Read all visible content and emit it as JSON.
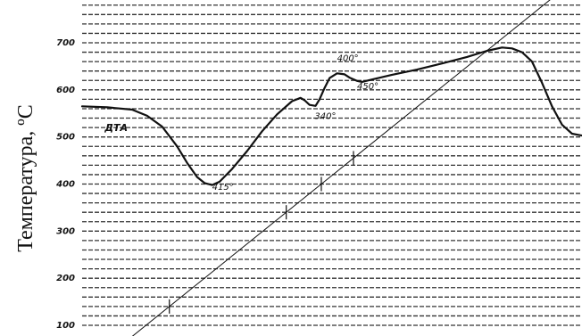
{
  "chart_data": {
    "type": "line",
    "ylabel": "Температура, ºС",
    "ytick_labels": [
      "700",
      "600",
      "500",
      "400",
      "300",
      "200",
      "100"
    ],
    "ytick_values": [
      700,
      600,
      500,
      400,
      300,
      200,
      100
    ],
    "ylim": [
      65,
      780
    ],
    "grid": true,
    "series": [
      {
        "name": "ДТА",
        "comment": "differential thermal analysis curve (temperature-scale readings)",
        "points": [
          [
            0,
            565
          ],
          [
            5,
            563
          ],
          [
            10,
            558
          ],
          [
            13,
            545
          ],
          [
            16,
            522
          ],
          [
            19,
            480
          ],
          [
            21,
            445
          ],
          [
            23,
            415
          ],
          [
            24.5,
            402
          ],
          [
            26,
            398
          ],
          [
            27.5,
            405
          ],
          [
            30,
            432
          ],
          [
            33,
            470
          ],
          [
            36,
            512
          ],
          [
            39,
            548
          ],
          [
            42,
            576
          ],
          [
            43.7,
            583
          ],
          [
            44.5,
            578
          ],
          [
            45.5,
            568
          ],
          [
            46.7,
            566
          ],
          [
            47.5,
            580
          ],
          [
            48.5,
            604
          ],
          [
            49.5,
            625
          ],
          [
            51,
            635
          ],
          [
            52.5,
            633
          ],
          [
            53.5,
            626
          ],
          [
            55,
            619
          ],
          [
            56,
            617
          ],
          [
            58,
            622
          ],
          [
            62,
            632
          ],
          [
            67,
            643
          ],
          [
            72,
            656
          ],
          [
            77,
            670
          ],
          [
            81,
            683
          ],
          [
            84,
            690
          ],
          [
            86,
            688
          ],
          [
            88,
            680
          ],
          [
            90,
            660
          ],
          [
            92,
            615
          ],
          [
            94,
            565
          ],
          [
            96,
            526
          ],
          [
            98,
            507
          ],
          [
            100,
            503
          ]
        ]
      },
      {
        "name": "temperature",
        "points": [
          [
            9.5,
            72
          ],
          [
            100,
            846
          ]
        ]
      }
    ],
    "annotations": [
      {
        "text": "ДТА",
        "x": 4.5,
        "y": 513
      },
      {
        "text": "340°",
        "x": 46.5,
        "y": 538
      },
      {
        "text": "400°",
        "x": 51,
        "y": 661
      },
      {
        "text": "450°",
        "x": 55,
        "y": 602
      },
      {
        "text": "415°",
        "x": 26,
        "y": 388
      }
    ],
    "ticks_on_temperature_line": [
      140,
      340,
      400,
      455
    ]
  }
}
